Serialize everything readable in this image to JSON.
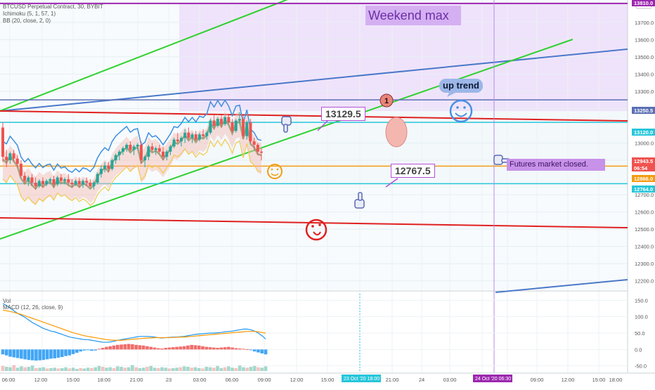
{
  "chart_data": {
    "type": "candlestick",
    "symbol_line": "BTCUSD Perpetual Contract, 30, BYBIT",
    "indicators": [
      "Ichimoku (5, 1, 57, 1)",
      "BB (20, close, 2, 0)"
    ],
    "lower_pane_labels": [
      "Vol",
      "MACD (12, 26, close, 9)"
    ],
    "price_axis": {
      "currency": "USD",
      "ticks": [
        13700.0,
        13600.0,
        13500.0,
        13400.0,
        13300.0,
        13200.0,
        13000.0,
        12900.0,
        12700.0,
        12600.0,
        12500.0,
        12400.0,
        12300.0,
        12200.0
      ],
      "tick_labels": [
        "13700.0",
        "13600.0",
        "13500.0",
        "13400.0",
        "13300.0",
        "13200.0",
        "13000.0",
        "12900.0",
        "12700.0",
        "12600.0",
        "12500.0",
        "12400.0",
        "12300.0",
        "12200.0"
      ],
      "range": [
        12150,
        13830
      ]
    },
    "price_labels": [
      {
        "text": "13250.5",
        "value": 13250.5,
        "color": "#5a6fb3"
      },
      {
        "text": "13120.0",
        "value": 13120.0,
        "color": "#26c6da"
      },
      {
        "text": "12943.5",
        "value": 12943.5,
        "color": "#ef5350"
      },
      {
        "text": "06:54",
        "value": 12900,
        "color": "#ef5350"
      },
      {
        "text": "12866.0",
        "value": 12866.0,
        "color": "#f39c12"
      },
      {
        "text": "12764.0",
        "value": 12764.0,
        "color": "#26c6da"
      },
      {
        "text": "13810.0",
        "value": 13810,
        "color": "#9c27b0"
      }
    ],
    "macd_axis": {
      "ticks": [
        150.0,
        100.0,
        50.0,
        0.0,
        -50.0
      ],
      "tick_labels": [
        "150.0",
        "100.0",
        "50.0",
        "0.0",
        "-50.0"
      ],
      "range": [
        -70,
        170
      ]
    },
    "time_axis": {
      "labels": [
        "06:00",
        "12:00",
        "15:00",
        "18:00",
        "21:00",
        "23",
        "03:00",
        "06:00",
        "09:00",
        "12:00",
        "15:00",
        "23 Oct '20",
        "18:00",
        "21:00",
        "24",
        "03:00",
        "06:00",
        "24 Oct '20",
        "06:30",
        "09:00",
        "12:00",
        "15:00",
        "18:00"
      ],
      "highlight_labels": [
        {
          "text": "23 Oct '20  18:00",
          "color": "#26c6da"
        },
        {
          "text": "24 Oct '20  06:30",
          "color": "#9c27b0"
        }
      ]
    },
    "horizontal_levels": [
      {
        "value": 13250.5,
        "color": "#5a6fb3"
      },
      {
        "value": 13120.0,
        "color": "#26c6da"
      },
      {
        "value": 12866.0,
        "color": "#f39c12"
      },
      {
        "value": 12764.0,
        "color": "#26c6da"
      },
      {
        "value": 13810.0,
        "color": "#9c27b0"
      }
    ],
    "annotations": {
      "weekend_box": "Weekend max",
      "up_trend": "up trend",
      "resistance_callout": "13129.5",
      "support_callout": "12767.5",
      "futures_note": "Futures market closed.",
      "marker_number": "1"
    },
    "candles": [
      [
        13090,
        13120,
        12890,
        12920
      ],
      [
        12920,
        12960,
        12860,
        12900
      ],
      [
        12900,
        12950,
        12880,
        12940
      ],
      [
        12940,
        12960,
        12890,
        12910
      ],
      [
        12910,
        12930,
        12860,
        12880
      ],
      [
        12880,
        12900,
        12800,
        12810
      ],
      [
        12810,
        12830,
        12760,
        12780
      ],
      [
        12780,
        12810,
        12750,
        12800
      ],
      [
        12800,
        12820,
        12750,
        12770
      ],
      [
        12770,
        12800,
        12730,
        12750
      ],
      [
        12750,
        12790,
        12740,
        12780
      ],
      [
        12780,
        12800,
        12740,
        12760
      ],
      [
        12760,
        12790,
        12750,
        12780
      ],
      [
        12780,
        12800,
        12760,
        12790
      ],
      [
        12790,
        12810,
        12740,
        12760
      ],
      [
        12760,
        12810,
        12750,
        12800
      ],
      [
        12800,
        12820,
        12770,
        12780
      ],
      [
        12780,
        12800,
        12760,
        12790
      ],
      [
        12790,
        12820,
        12760,
        12770
      ],
      [
        12770,
        12790,
        12740,
        12760
      ],
      [
        12760,
        12790,
        12750,
        12780
      ],
      [
        12780,
        12800,
        12740,
        12760
      ],
      [
        12760,
        12790,
        12740,
        12780
      ],
      [
        12780,
        12800,
        12750,
        12770
      ],
      [
        12770,
        12790,
        12740,
        12750
      ],
      [
        12750,
        12780,
        12730,
        12770
      ],
      [
        12770,
        12830,
        12760,
        12820
      ],
      [
        12820,
        12870,
        12800,
        12850
      ],
      [
        12850,
        12890,
        12830,
        12870
      ],
      [
        12870,
        12890,
        12830,
        12850
      ],
      [
        12850,
        12910,
        12840,
        12900
      ],
      [
        12900,
        12940,
        12880,
        12930
      ],
      [
        12930,
        12960,
        12900,
        12950
      ],
      [
        12950,
        12980,
        12930,
        12970
      ],
      [
        12970,
        13000,
        12950,
        12990
      ],
      [
        12990,
        13010,
        12950,
        12960
      ],
      [
        12960,
        12990,
        12930,
        12980
      ],
      [
        12980,
        13000,
        12960,
        12990
      ],
      [
        12990,
        13010,
        12880,
        12900
      ],
      [
        12900,
        12930,
        12860,
        12920
      ],
      [
        12920,
        12990,
        12900,
        12980
      ],
      [
        12980,
        13000,
        12950,
        12960
      ],
      [
        12960,
        12980,
        12930,
        12970
      ],
      [
        12970,
        12990,
        12940,
        12950
      ],
      [
        12950,
        12980,
        12900,
        12920
      ],
      [
        12920,
        12960,
        12900,
        12950
      ],
      [
        12950,
        12990,
        12930,
        12980
      ],
      [
        12980,
        13030,
        12970,
        13020
      ],
      [
        13020,
        13060,
        13000,
        13010
      ],
      [
        13010,
        13040,
        12980,
        13030
      ],
      [
        13030,
        13080,
        13000,
        13060
      ],
      [
        13060,
        13090,
        13020,
        13030
      ],
      [
        13030,
        13060,
        13000,
        13050
      ],
      [
        13050,
        13070,
        13010,
        13020
      ],
      [
        13020,
        13060,
        13010,
        13050
      ],
      [
        13050,
        13080,
        13030,
        13040
      ],
      [
        13040,
        13070,
        13020,
        13060
      ],
      [
        13060,
        13140,
        13050,
        13130
      ],
      [
        13130,
        13160,
        13080,
        13100
      ],
      [
        13100,
        13150,
        13090,
        13140
      ],
      [
        13140,
        13160,
        13090,
        13110
      ],
      [
        13110,
        13160,
        13100,
        13150
      ],
      [
        13150,
        13170,
        13110,
        13120
      ],
      [
        13120,
        13140,
        13060,
        13070
      ],
      [
        13070,
        13140,
        13060,
        13130
      ],
      [
        13130,
        13180,
        13110,
        13140
      ],
      [
        13140,
        13160,
        13020,
        13040
      ],
      [
        13040,
        13130,
        13020,
        13120
      ],
      [
        13120,
        13140,
        13000,
        13010
      ],
      [
        13010,
        13030,
        12960,
        12990
      ],
      [
        12990,
        13000,
        12930,
        12950
      ],
      [
        12950,
        12970,
        12900,
        12943.5
      ]
    ],
    "volume_bars": [
      12,
      10,
      9,
      14,
      8,
      11,
      9,
      10,
      13,
      7,
      8,
      9,
      6,
      7,
      8,
      6,
      7,
      9,
      6,
      8,
      5,
      7,
      6,
      8,
      7,
      9,
      12,
      10,
      8,
      9,
      7,
      11,
      10,
      8,
      9,
      14,
      9,
      7,
      8,
      10,
      12,
      8,
      7,
      9,
      8,
      6,
      7,
      8,
      9,
      11,
      10,
      8,
      9,
      7,
      6,
      10,
      9,
      8,
      12,
      7,
      9,
      11,
      8,
      7,
      13,
      9,
      8,
      10,
      12,
      9,
      8,
      11
    ],
    "macd_hist": [
      -15,
      -18,
      -22,
      -24,
      -26,
      -28,
      -30,
      -32,
      -33,
      -34,
      -33,
      -32,
      -30,
      -28,
      -27,
      -25,
      -23,
      -20,
      -18,
      -14,
      -10,
      -6,
      -3,
      -2,
      -4,
      -3,
      2,
      5,
      8,
      10,
      12,
      14,
      15,
      16,
      17,
      16,
      14,
      13,
      12,
      10,
      8,
      6,
      4,
      3,
      5,
      6,
      7,
      8,
      9,
      10,
      12,
      14,
      13,
      12,
      10,
      8,
      7,
      6,
      5,
      6,
      7,
      8,
      6,
      4,
      3,
      2,
      1,
      -2,
      -6,
      -9,
      -12,
      -15
    ],
    "macd_line": [
      140,
      134,
      126,
      118,
      110,
      104,
      98,
      90,
      82,
      76,
      70,
      64,
      60,
      56,
      54,
      50,
      46,
      42,
      38,
      36,
      34,
      32,
      30,
      30,
      28,
      26,
      24,
      22,
      22,
      23,
      25,
      28,
      30,
      32,
      34,
      36,
      38,
      40,
      40,
      40,
      39,
      38,
      36,
      35,
      36,
      37,
      38,
      38,
      39,
      40,
      42,
      44,
      46,
      47,
      48,
      49,
      50,
      50,
      51,
      52,
      54,
      55,
      56,
      58,
      60,
      62,
      62,
      60,
      56,
      50,
      42,
      32
    ],
    "signal_line": [
      120,
      118,
      116,
      113,
      110,
      107,
      103,
      99,
      95,
      91,
      87,
      83,
      79,
      75,
      71,
      67,
      63,
      59,
      55,
      51,
      48,
      45,
      42,
      40,
      38,
      36,
      34,
      32,
      30,
      29,
      28,
      28,
      28,
      29,
      30,
      31,
      32,
      33,
      34,
      35,
      35,
      36,
      36,
      36,
      36,
      36,
      37,
      37,
      38,
      38,
      39,
      40,
      41,
      42,
      43,
      44,
      45,
      46,
      47,
      48,
      49,
      50,
      51,
      52,
      53,
      54,
      55,
      55,
      55,
      54,
      52,
      50
    ],
    "colors": {
      "up": "#26a69a",
      "down": "#ef5350",
      "macd": "#2196f3",
      "signal": "#ff9800",
      "bb": "#3d8ee0",
      "basis": "#8d9a6f"
    }
  }
}
